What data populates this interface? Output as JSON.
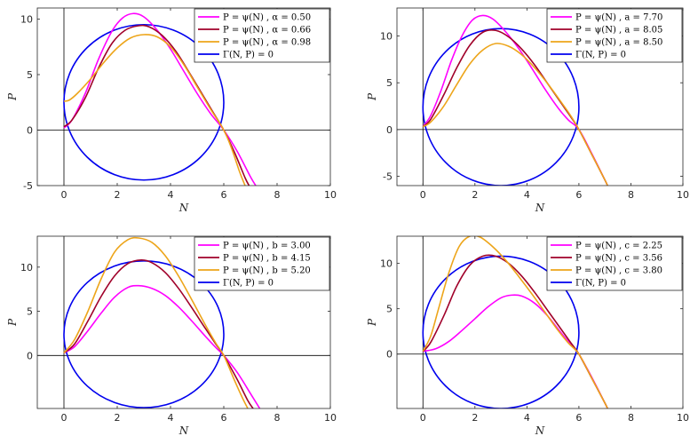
{
  "chart_data": [
    {
      "type": "line",
      "xlabel": "N",
      "ylabel": "P",
      "xlim": [
        -1,
        10
      ],
      "ylim": [
        -5,
        11
      ],
      "xticks": [
        "0",
        "2",
        "4",
        "6",
        "8",
        "10"
      ],
      "xtick_values": [
        0,
        2,
        4,
        6,
        8,
        10
      ],
      "yticks": [
        "-5",
        "0",
        "5",
        "10"
      ],
      "ytick_values": [
        -5,
        0,
        5,
        10
      ],
      "ellipse": {
        "name": "Γ(N, P) = 0",
        "center": [
          3,
          2.5
        ],
        "radii": [
          3,
          7
        ],
        "color": "#0000ee"
      },
      "series": [
        {
          "name": "P = ψ(N) , α = 0.50",
          "color": "#ff00ff",
          "x": [
            0,
            0.3,
            0.8,
            1.3,
            1.8,
            2.2,
            2.6,
            3.0,
            3.5,
            4.0,
            4.5,
            5.0,
            5.5,
            6.0,
            6.5,
            7.0,
            7.2
          ],
          "y": [
            0.2,
            0.9,
            3.3,
            6.4,
            8.9,
            10.1,
            10.5,
            10.2,
            9.0,
            7.3,
            5.3,
            3.3,
            1.5,
            0,
            -1.9,
            -4.2,
            -5.0
          ]
        },
        {
          "name": "P = ψ(N) , α = 0.66",
          "color": "#a0002a",
          "x": [
            0,
            0.3,
            0.8,
            1.3,
            1.8,
            2.3,
            2.8,
            3.2,
            3.7,
            4.2,
            4.7,
            5.2,
            5.6,
            6.0,
            6.4,
            6.8,
            6.95
          ],
          "y": [
            0.3,
            0.9,
            2.9,
            5.6,
            7.8,
            9.0,
            9.4,
            9.3,
            8.5,
            7.1,
            5.2,
            3.2,
            1.6,
            0,
            -2.0,
            -4.3,
            -5.0
          ]
        },
        {
          "name": "P = ψ(N) , α = 0.98",
          "color": "#eda51a",
          "x": [
            0,
            0.2,
            0.5,
            1.0,
            1.5,
            2.0,
            2.5,
            3.0,
            3.5,
            4.0,
            4.5,
            5.0,
            5.5,
            6.0,
            6.3,
            6.6,
            6.8
          ],
          "y": [
            2.6,
            2.7,
            3.3,
            4.6,
            6.1,
            7.4,
            8.3,
            8.6,
            8.4,
            7.5,
            5.9,
            3.9,
            1.9,
            0,
            -1.7,
            -3.8,
            -5.0
          ]
        }
      ]
    },
    {
      "type": "line",
      "xlabel": "N",
      "ylabel": "P",
      "xlim": [
        -1,
        10
      ],
      "ylim": [
        -6,
        13
      ],
      "xticks": [
        "0",
        "2",
        "4",
        "6",
        "8",
        "10"
      ],
      "xtick_values": [
        0,
        2,
        4,
        6,
        8,
        10
      ],
      "yticks": [
        "-5",
        "0",
        "5",
        "10"
      ],
      "ytick_values": [
        -5,
        0,
        5,
        10
      ],
      "ellipse": {
        "name": "Γ(N, P) = 0",
        "center": [
          3,
          2.4
        ],
        "radii": [
          3,
          8.4
        ],
        "color": "#0000ee"
      },
      "series": [
        {
          "name": "P = ψ(N) , a = 7.70",
          "color": "#ff00ff",
          "x": [
            0,
            0.3,
            0.7,
            1.1,
            1.5,
            1.9,
            2.3,
            2.7,
            3.2,
            3.7,
            4.2,
            4.7,
            5.2,
            5.6,
            6.0,
            6.5,
            7.0,
            7.1
          ],
          "y": [
            0.3,
            1.5,
            4.2,
            7.4,
            10.0,
            11.7,
            12.2,
            11.8,
            10.4,
            8.6,
            6.5,
            4.3,
            2.3,
            1.0,
            0,
            -2.6,
            -5.4,
            -6.0
          ]
        },
        {
          "name": "P = ψ(N) , a = 8.05",
          "color": "#a0002a",
          "x": [
            0,
            0.3,
            0.8,
            1.3,
            1.8,
            2.3,
            2.8,
            3.3,
            3.8,
            4.3,
            4.8,
            5.3,
            5.7,
            6.0,
            6.5,
            7.0,
            7.1
          ],
          "y": [
            0.3,
            1.1,
            3.7,
            6.6,
            9.0,
            10.4,
            10.6,
            9.9,
            8.6,
            6.9,
            4.9,
            2.9,
            1.3,
            0,
            -2.7,
            -5.4,
            -6.0
          ]
        },
        {
          "name": "P = ψ(N) , a = 8.50",
          "color": "#eda51a",
          "x": [
            0,
            0.3,
            0.8,
            1.3,
            1.8,
            2.3,
            2.8,
            3.3,
            3.8,
            4.3,
            4.8,
            5.3,
            5.7,
            6.0,
            6.5,
            7.0,
            7.1
          ],
          "y": [
            0.3,
            0.8,
            2.5,
            4.8,
            7.0,
            8.5,
            9.2,
            8.9,
            8.0,
            6.6,
            4.9,
            3.0,
            1.4,
            0,
            -2.7,
            -5.4,
            -6.0
          ]
        }
      ]
    },
    {
      "type": "line",
      "xlabel": "N",
      "ylabel": "P",
      "xlim": [
        -1,
        10
      ],
      "ylim": [
        -6,
        13.5
      ],
      "xticks": [
        "0",
        "2",
        "4",
        "6",
        "8",
        "10"
      ],
      "xtick_values": [
        0,
        2,
        4,
        6,
        8,
        10
      ],
      "yticks": [
        "0",
        "5",
        "10"
      ],
      "ytick_values": [
        0,
        5,
        10
      ],
      "ellipse": {
        "name": "Γ(N, P) = 0",
        "center": [
          3,
          2.4
        ],
        "radii": [
          3,
          8.3
        ],
        "color": "#0000ee"
      },
      "series": [
        {
          "name": "P = ψ(N) , b = 3.00",
          "color": "#ff00ff",
          "x": [
            0,
            0.4,
            0.9,
            1.4,
            1.9,
            2.4,
            2.8,
            3.3,
            3.8,
            4.3,
            4.8,
            5.3,
            5.7,
            6.0,
            6.5,
            7.0,
            7.35
          ],
          "y": [
            0.3,
            1.0,
            2.8,
            4.8,
            6.6,
            7.7,
            7.9,
            7.6,
            6.8,
            5.5,
            3.9,
            2.2,
            0.9,
            0,
            -1.9,
            -4.3,
            -6.0
          ]
        },
        {
          "name": "P = ψ(N) , b = 4.15",
          "color": "#a0002a",
          "x": [
            0,
            0.4,
            0.9,
            1.4,
            1.9,
            2.4,
            2.9,
            3.3,
            3.8,
            4.3,
            4.8,
            5.3,
            5.7,
            6.0,
            6.5,
            6.9,
            7.1
          ],
          "y": [
            0.3,
            1.3,
            3.9,
            6.7,
            9.0,
            10.4,
            10.8,
            10.5,
            9.4,
            7.6,
            5.4,
            3.1,
            1.3,
            0,
            -2.7,
            -5.1,
            -6.0
          ]
        },
        {
          "name": "P = ψ(N) , b = 5.20",
          "color": "#eda51a",
          "x": [
            0,
            0.4,
            0.9,
            1.4,
            1.9,
            2.4,
            2.8,
            3.3,
            3.8,
            4.3,
            4.8,
            5.3,
            5.7,
            6.0,
            6.4,
            6.7,
            6.9
          ],
          "y": [
            0.3,
            1.8,
            5.0,
            8.7,
            11.7,
            13.1,
            13.3,
            12.8,
            11.3,
            9.0,
            6.3,
            3.5,
            1.4,
            0,
            -2.8,
            -4.8,
            -6.0
          ]
        }
      ]
    },
    {
      "type": "line",
      "xlabel": "N",
      "ylabel": "P",
      "xlim": [
        -1,
        10
      ],
      "ylim": [
        -6,
        13
      ],
      "xticks": [
        "0",
        "2",
        "4",
        "6",
        "8",
        "10"
      ],
      "xtick_values": [
        0,
        2,
        4,
        6,
        8,
        10
      ],
      "yticks": [
        "0",
        "5",
        "10"
      ],
      "ytick_values": [
        0,
        5,
        10
      ],
      "ellipse": {
        "name": "Γ(N, P) = 0",
        "center": [
          3,
          2.4
        ],
        "radii": [
          3,
          8.4
        ],
        "color": "#0000ee"
      },
      "series": [
        {
          "name": "P = ψ(N) , c = 2.25",
          "color": "#ff00ff",
          "x": [
            0,
            0.5,
            1.0,
            1.5,
            2.0,
            2.5,
            3.0,
            3.4,
            3.8,
            4.3,
            4.8,
            5.3,
            5.7,
            6.0,
            6.5,
            7.0,
            7.1
          ],
          "y": [
            0.3,
            0.6,
            1.4,
            2.6,
            3.9,
            5.2,
            6.2,
            6.5,
            6.4,
            5.6,
            4.2,
            2.4,
            1.0,
            0,
            -2.6,
            -5.4,
            -6.0
          ]
        },
        {
          "name": "P = ψ(N) , c = 3.56",
          "color": "#a0002a",
          "x": [
            0,
            0.3,
            0.8,
            1.3,
            1.8,
            2.3,
            2.8,
            3.3,
            3.8,
            4.3,
            4.8,
            5.3,
            5.7,
            6.0,
            6.5,
            7.0,
            7.1
          ],
          "y": [
            0.3,
            1.3,
            4.2,
            7.5,
            9.8,
            10.8,
            10.8,
            10.0,
            8.6,
            6.8,
            4.8,
            2.8,
            1.2,
            0,
            -2.7,
            -5.4,
            -6.0
          ]
        },
        {
          "name": "P = ψ(N) , c = 3.80",
          "color": "#eda51a",
          "x": [
            0,
            0.3,
            0.6,
            1.0,
            1.4,
            1.8,
            2.2,
            2.7,
            3.2,
            3.7,
            4.2,
            4.7,
            5.2,
            5.6,
            6.0,
            6.5,
            7.0,
            7.1
          ],
          "y": [
            0.3,
            2.0,
            5.0,
            9.0,
            11.9,
            13.0,
            12.9,
            11.8,
            10.3,
            8.5,
            6.6,
            4.6,
            2.6,
            1.2,
            0,
            -2.7,
            -5.4,
            -6.0
          ]
        }
      ]
    }
  ]
}
